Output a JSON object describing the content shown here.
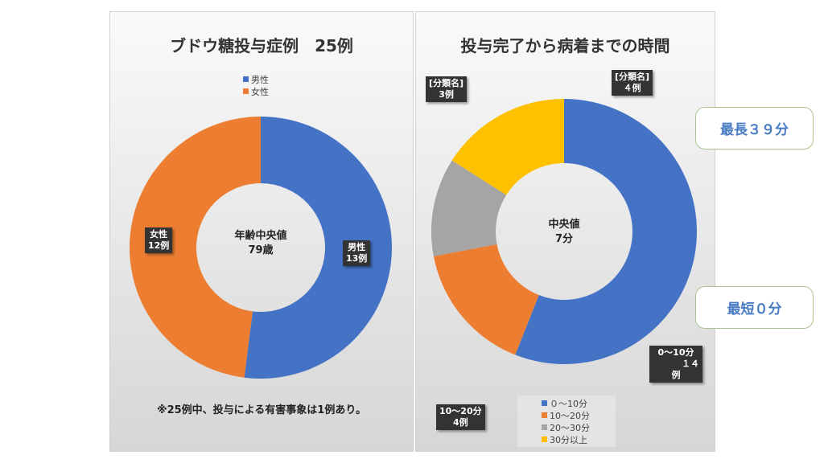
{
  "chart_data": [
    {
      "type": "pie",
      "title": "ブドウ糖投与症例　25例",
      "categories": [
        "男性",
        "女性"
      ],
      "values": [
        13,
        12
      ],
      "colors": [
        "#4472c4",
        "#ed7d31"
      ],
      "center_label": [
        "年齢中央値",
        "79歳"
      ],
      "data_labels": [
        [
          "男性",
          "13例"
        ],
        [
          "女性",
          "12例"
        ]
      ],
      "legend": "top",
      "note": "※25例中、投与による有害事象は1例あり。"
    },
    {
      "type": "pie",
      "title": "投与完了から病着までの時間",
      "categories": [
        "０～10分",
        "10～20分",
        "20～30分",
        "30分以上"
      ],
      "values": [
        14,
        4,
        3,
        4
      ],
      "colors": [
        "#4472c4",
        "#ed7d31",
        "#a5a5a5",
        "#ffc000"
      ],
      "center_label": [
        "中央値",
        "7分"
      ],
      "data_labels": [
        [
          "0～10分",
          "１４",
          "例"
        ],
        [
          "10～20分",
          "4例"
        ],
        [
          "[分類名]",
          "3例"
        ],
        [
          "[分類名]",
          "４例"
        ]
      ],
      "legend": "bottom"
    }
  ],
  "callouts": {
    "max": "最長３９分",
    "min": "最短０分"
  }
}
